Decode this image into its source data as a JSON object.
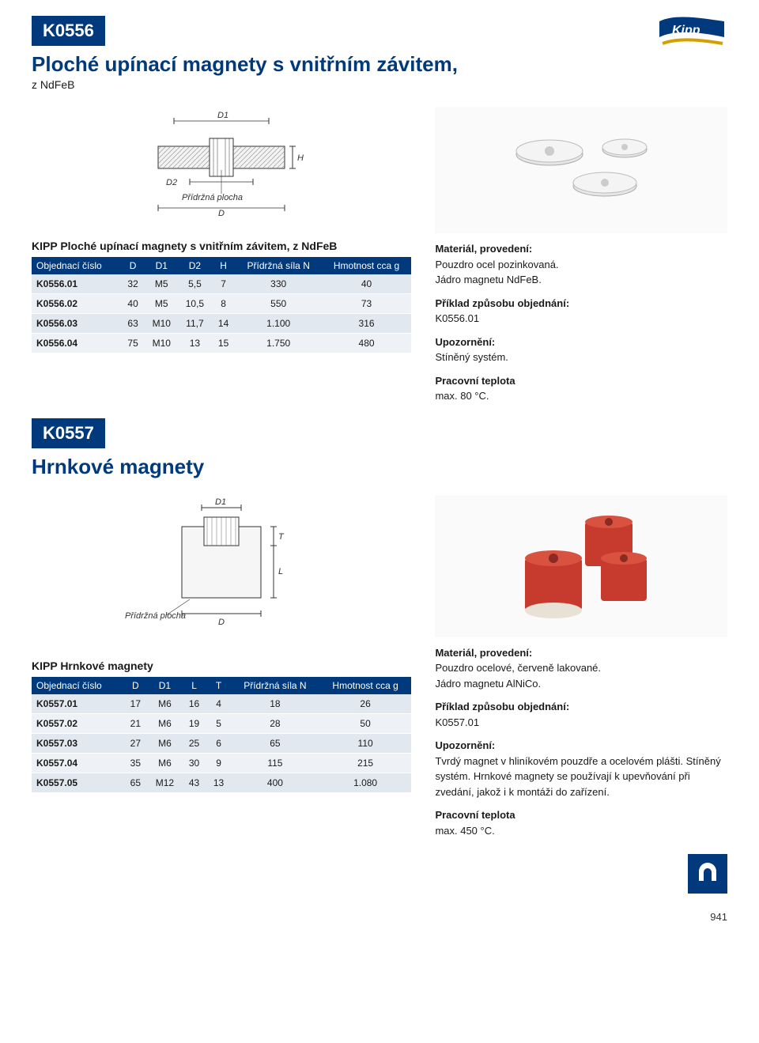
{
  "colors": {
    "brand": "#003a7d",
    "text": "#1a1a1a",
    "row_odd": "#e2e8ef",
    "row_even": "#eef2f6",
    "bg": "#ffffff"
  },
  "page_number": "941",
  "logo_text": "Kipp",
  "section1": {
    "badge": "K0556",
    "title": "Ploché upínací magnety s vnitřním závitem,",
    "subtitle": "z NdFeB",
    "diagram": {
      "labels": {
        "D1": "D1",
        "D2": "D2",
        "H": "H",
        "D": "D",
        "plate": "Přídržná plocha"
      }
    },
    "info": {
      "mat_h": "Materiál, provedení:",
      "mat_1": "Pouzdro ocel pozinkovaná.",
      "mat_2": "Jádro magnetu NdFeB.",
      "ord_h": "Příklad způsobu objednání:",
      "ord_v": "K0556.01",
      "warn_h": "Upozornění:",
      "warn_v": "Stíněný systém.",
      "temp_h": "Pracovní teplota",
      "temp_v": "max. 80 °C."
    },
    "table": {
      "caption": "KIPP Ploché upínací magnety s vnitřním závitem, z NdFeB",
      "headers": [
        "Objednací číslo",
        "D",
        "D1",
        "D2",
        "H",
        "Přídržná síla N",
        "Hmotnost cca g"
      ],
      "rows": [
        [
          "K0556.01",
          "32",
          "M5",
          "5,5",
          "7",
          "330",
          "40"
        ],
        [
          "K0556.02",
          "40",
          "M5",
          "10,5",
          "8",
          "550",
          "73"
        ],
        [
          "K0556.03",
          "63",
          "M10",
          "11,7",
          "14",
          "1.100",
          "316"
        ],
        [
          "K0556.04",
          "75",
          "M10",
          "13",
          "15",
          "1.750",
          "480"
        ]
      ]
    }
  },
  "section2": {
    "badge": "K0557",
    "title": "Hrnkové magnety",
    "diagram": {
      "labels": {
        "D1": "D1",
        "T": "T",
        "L": "L",
        "D": "D",
        "plate": "Přídržná plocha"
      }
    },
    "info": {
      "mat_h": "Materiál, provedení:",
      "mat_1": "Pouzdro ocelové, červeně lakované.",
      "mat_2": "Jádro magnetu AlNiCo.",
      "ord_h": "Příklad způsobu objednání:",
      "ord_v": "K0557.01",
      "warn_h": "Upozornění:",
      "warn_v": "Tvrdý magnet v hliníkovém pouzdře a ocelovém plášti. Stíněný systém. Hrnkové magnety se používají k upevňování při zvedání, jakož i k montáži do zařízení.",
      "temp_h": "Pracovní teplota",
      "temp_v": "max. 450 °C."
    },
    "table": {
      "caption": "KIPP Hrnkové magnety",
      "headers": [
        "Objednací číslo",
        "D",
        "D1",
        "L",
        "T",
        "Přídržná síla N",
        "Hmotnost cca g"
      ],
      "rows": [
        [
          "K0557.01",
          "17",
          "M6",
          "16",
          "4",
          "18",
          "26"
        ],
        [
          "K0557.02",
          "21",
          "M6",
          "19",
          "5",
          "28",
          "50"
        ],
        [
          "K0557.03",
          "27",
          "M6",
          "25",
          "6",
          "65",
          "110"
        ],
        [
          "K0557.04",
          "35",
          "M6",
          "30",
          "9",
          "115",
          "215"
        ],
        [
          "K0557.05",
          "65",
          "M12",
          "43",
          "13",
          "400",
          "1.080"
        ]
      ]
    }
  }
}
